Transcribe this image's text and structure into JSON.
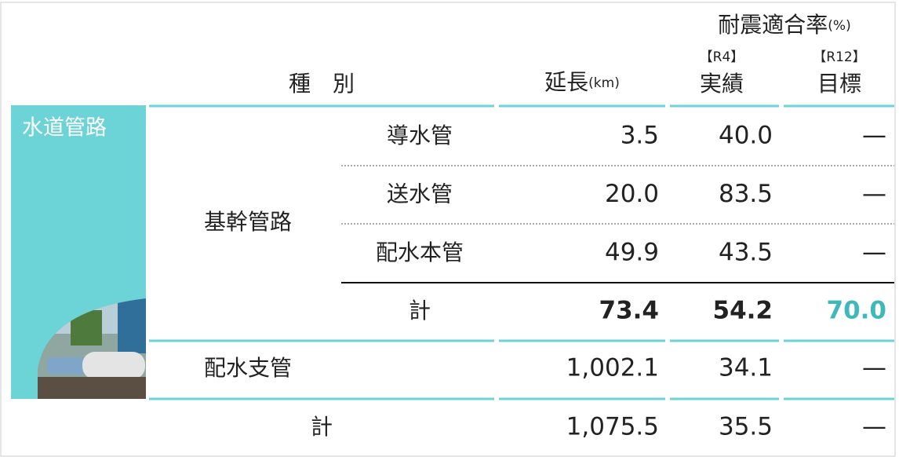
{
  "header": {
    "category": "種　別",
    "length": "延長",
    "length_unit": "(km)",
    "rate": "耐震適合率",
    "rate_unit": "(%)",
    "r4_tag": "【R4】",
    "r4": "実績",
    "r12_tag": "【R12】",
    "r12": "目標"
  },
  "section": "水道管路",
  "group": "基幹管路",
  "rows": [
    [
      "導水管",
      "3.5",
      "40.0",
      "—"
    ],
    [
      "送水管",
      "20.0",
      "83.5",
      "—"
    ],
    [
      "配水本管",
      "49.9",
      "43.5",
      "—"
    ]
  ],
  "group_total": [
    "計",
    "73.4",
    "54.2",
    "70.0"
  ],
  "branch": [
    "配水支管",
    "1,002.1",
    "34.1",
    "—"
  ],
  "total": [
    "計",
    "1,075.5",
    "35.5",
    "—"
  ]
}
